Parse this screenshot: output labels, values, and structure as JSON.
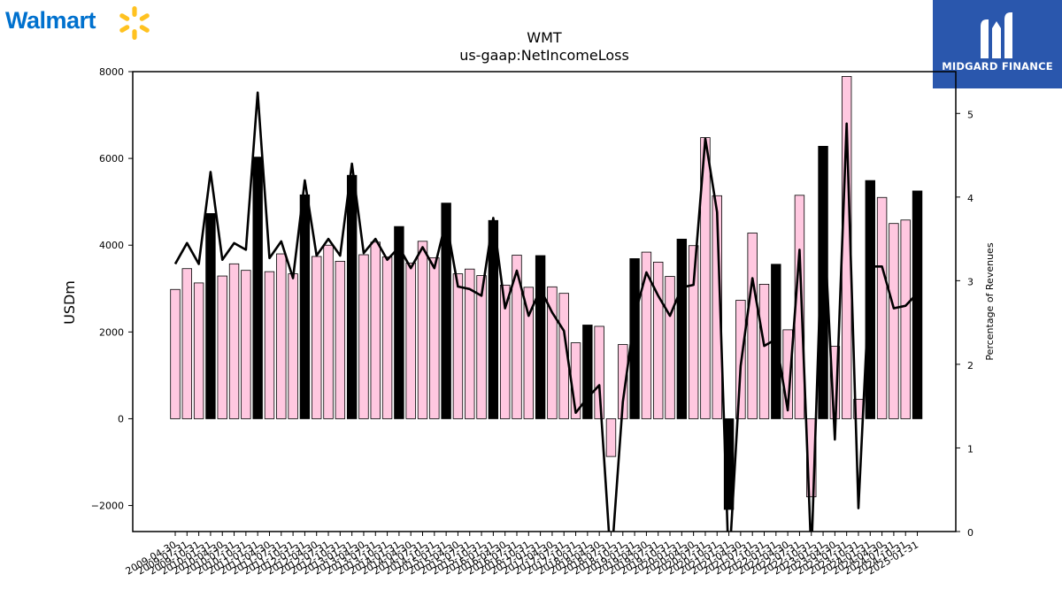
{
  "branding": {
    "company_logo_text": "Walmart",
    "company_logo_icon": "walmart-spark-icon",
    "publisher_name": "MIDGARD FINANCE",
    "publisher_logo_icon": "midgard-mark-icon",
    "walmart_blue": "#0071ce",
    "walmart_yellow": "#ffc220",
    "midgard_blue": "#2a57ad"
  },
  "chart_data": {
    "type": "bar",
    "title": "WMT",
    "subtitle": "us-gaap:NetIncomeLoss",
    "ylabel": "USDm",
    "y2label": "Percentage of Revenues",
    "ylim": [
      -2600,
      8000
    ],
    "yticks": [
      -2000,
      0,
      2000,
      4000,
      6000,
      8000
    ],
    "ytick_labels": [
      "−2000",
      "0",
      "2000",
      "4000",
      "6000",
      "8000"
    ],
    "y2lim": [
      0,
      5.5
    ],
    "y2ticks": [
      0,
      1,
      2,
      3,
      4,
      5
    ],
    "grid": false,
    "legend": "none",
    "colors": {
      "quarter_bar": "#ffc8e0",
      "fiscal_year_bar": "#000000",
      "bar_edge": "#000000",
      "line": "#000000"
    },
    "x": [
      "2009-04-30",
      "2009-07-31",
      "2009-10-31",
      "2010-01-31",
      "2010-04-30",
      "2010-07-31",
      "2010-10-31",
      "2011-01-31",
      "2011-04-30",
      "2011-07-31",
      "2011-10-31",
      "2012-01-31",
      "2012-04-30",
      "2012-07-31",
      "2012-10-31",
      "2013-01-31",
      "2013-04-30",
      "2013-07-31",
      "2013-10-31",
      "2014-01-31",
      "2014-04-30",
      "2014-07-31",
      "2014-10-31",
      "2015-01-31",
      "2015-04-30",
      "2015-07-31",
      "2015-10-31",
      "2016-01-31",
      "2016-04-30",
      "2016-07-31",
      "2016-10-31",
      "2017-01-31",
      "2017-04-30",
      "2017-07-31",
      "2017-10-31",
      "2018-01-31",
      "2018-04-30",
      "2018-07-31",
      "2018-10-31",
      "2019-01-31",
      "2019-04-30",
      "2019-07-31",
      "2019-10-31",
      "2020-01-31",
      "2020-04-30",
      "2020-07-31",
      "2020-10-31",
      "2021-01-31",
      "2021-04-30",
      "2021-07-31",
      "2021-10-31",
      "2022-01-31",
      "2022-04-30",
      "2022-07-31",
      "2022-10-31",
      "2023-01-31",
      "2023-04-30",
      "2023-07-31",
      "2023-10-31",
      "2024-01-31",
      "2024-04-30",
      "2024-07-31",
      "2024-10-31",
      "2025-01-31"
    ],
    "x_tick_labels": [
      "2009-04-30",
      "2009-07-31",
      "2009-10-31",
      "2010-01-31",
      "2010-04-30",
      "2010-07-31",
      "2010-10-31",
      "2011-01-31",
      "2011-04-30",
      "2011-07-31",
      "2011-10-31",
      "2012-01-31",
      "2012-04-30",
      "2012-07-31",
      "2012-10-31",
      "2013-01-31",
      "2013-04-30",
      "2013-07-31",
      "2013-10-31",
      "2014-01-31",
      "2014-04-30",
      "2014-07-31",
      "2014-10-31",
      "2015-01-31",
      "2015-04-30",
      "2015-07-31",
      "2015-10-31",
      "2016-01-31",
      "2016-04-30",
      "2016-07-31",
      "2016-10-31",
      "2017-01-31",
      "2017-04-30",
      "2017-07-31",
      "2017-10-31",
      "2018-01-31",
      "2018-04-30",
      "2018-07-31",
      "2018-10-31",
      "2019-01-31",
      "2019-04-30",
      "2019-07-31",
      "2019-10-31",
      "2020-01-31",
      "2020-04-30",
      "2020-07-31",
      "2020-10-31",
      "2021-01-31",
      "2021-04-30",
      "2021-07-31",
      "2021-10-31",
      "2022-01-31",
      "2022-04-30",
      "2022-07-31",
      "2022-10-31",
      "2023-01-31",
      "2023-04-30",
      "2023-07-31",
      "2023-10-31",
      "2024-01-31",
      "2024-04-30",
      "2024-07-31",
      "2024-10-31",
      "2025-01-31"
    ],
    "fiscal_year_end": [
      false,
      false,
      false,
      true,
      false,
      false,
      false,
      true,
      false,
      false,
      false,
      true,
      false,
      false,
      false,
      true,
      false,
      false,
      false,
      true,
      false,
      false,
      false,
      true,
      false,
      false,
      false,
      true,
      false,
      false,
      false,
      true,
      false,
      false,
      false,
      true,
      false,
      false,
      false,
      true,
      false,
      false,
      false,
      true,
      false,
      false,
      false,
      true,
      false,
      false,
      false,
      true,
      false,
      false,
      false,
      true,
      false,
      false,
      false,
      true,
      false,
      false,
      false,
      true
    ],
    "series": [
      {
        "kind": "bar",
        "axis": "left",
        "values": [
          2980,
          3460,
          3130,
          4730,
          3290,
          3570,
          3420,
          6030,
          3390,
          3800,
          3340,
          5160,
          3740,
          4000,
          3630,
          5610,
          3780,
          4070,
          3730,
          4430,
          3590,
          4090,
          3710,
          4970,
          3340,
          3450,
          3300,
          4570,
          3080,
          3770,
          3030,
          3760,
          3040,
          2890,
          1750,
          2160,
          2130,
          -870,
          1710,
          3690,
          3840,
          3610,
          3280,
          4140,
          3990,
          6480,
          5140,
          -2090,
          2730,
          4280,
          3100,
          3560,
          2050,
          5150,
          -1800,
          6280,
          1670,
          7890,
          450,
          5490,
          5100,
          4500,
          4580,
          5250
        ]
      },
      {
        "kind": "line",
        "axis": "right",
        "values": [
          3.2,
          3.45,
          3.2,
          4.3,
          3.25,
          3.45,
          3.37,
          5.25,
          3.27,
          3.47,
          3.03,
          4.2,
          3.3,
          3.5,
          3.3,
          4.4,
          3.33,
          3.5,
          3.25,
          3.4,
          3.15,
          3.4,
          3.15,
          3.72,
          2.93,
          2.9,
          2.82,
          3.75,
          2.67,
          3.12,
          2.58,
          2.9,
          2.62,
          2.4,
          1.42,
          1.6,
          1.75,
          -0.4,
          1.55,
          2.58,
          3.1,
          2.82,
          2.58,
          2.92,
          2.95,
          4.7,
          3.82,
          -0.45,
          1.98,
          3.03,
          2.22,
          2.3,
          1.45,
          3.37,
          -0.3,
          3.93,
          1.1,
          4.88,
          0.28,
          3.17,
          3.17,
          2.67,
          2.7,
          2.85
        ]
      }
    ]
  }
}
